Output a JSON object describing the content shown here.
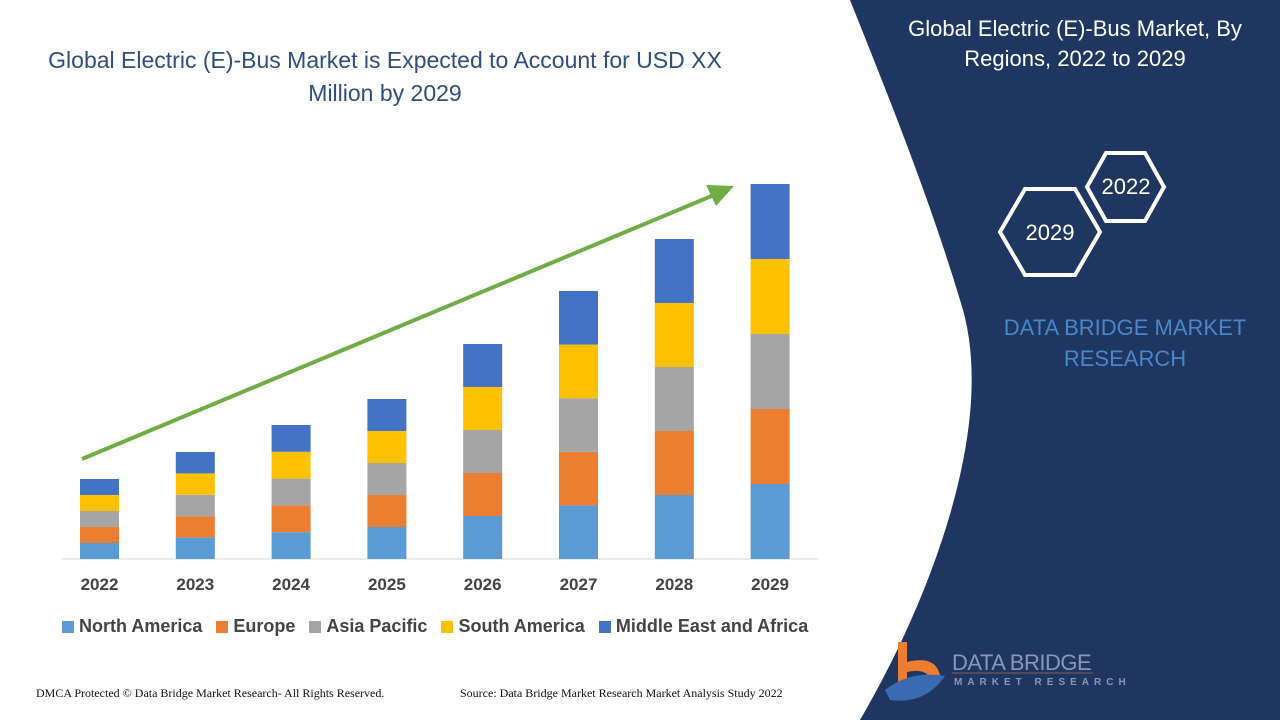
{
  "title": "Global Electric (E)-Bus Market is Expected to Account for USD XX Million by 2029",
  "side_panel": {
    "title": "Global Electric (E)-Bus Market, By Regions, 2022 to 2029",
    "hex_labels": [
      "2022",
      "2029"
    ],
    "brand": "DATA BRIDGE MARKET RESEARCH"
  },
  "logo": {
    "name": "DATA BRIDGE",
    "tagline": "MARKET RESEARCH"
  },
  "footer": {
    "left": "DMCA Protected © Data Bridge Market Research- All Rights Reserved.",
    "right": "Source: Data Bridge Market Research Market Analysis Study 2022"
  },
  "colors": {
    "panel": "#1f3660",
    "arrow": "#70ad47"
  },
  "chart_data": {
    "type": "bar",
    "stacked": true,
    "categories": [
      "2022",
      "2023",
      "2024",
      "2025",
      "2026",
      "2027",
      "2028",
      "2029"
    ],
    "series": [
      {
        "name": "North America",
        "color": "#5b9bd5",
        "values": [
          16,
          21.4,
          26.8,
          32,
          43,
          53.6,
          64,
          75
        ]
      },
      {
        "name": "Europe",
        "color": "#ed7d31",
        "values": [
          16,
          21.4,
          26.8,
          32,
          43,
          53.6,
          64,
          75
        ]
      },
      {
        "name": "Asia Pacific",
        "color": "#a5a5a5",
        "values": [
          16,
          21.4,
          26.8,
          32,
          43,
          53.6,
          64,
          75
        ]
      },
      {
        "name": "South America",
        "color": "#ffc000",
        "values": [
          16,
          21.4,
          26.8,
          32,
          43,
          53.6,
          64,
          75
        ]
      },
      {
        "name": "Middle East and Africa",
        "color": "#4472c4",
        "values": [
          16,
          21.4,
          26.8,
          32,
          43,
          53.6,
          64,
          75
        ]
      }
    ],
    "y_axis_shown": false,
    "grid": false,
    "legend": "bottom",
    "trend_arrow": true
  }
}
